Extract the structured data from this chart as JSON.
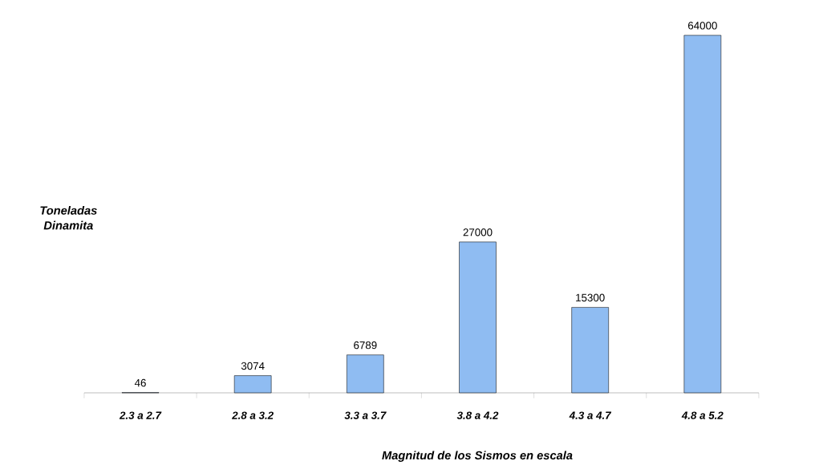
{
  "chart_data": {
    "type": "bar",
    "xlabel": "Magnitud de los Sismos en escala",
    "ylabel": "Toneladas Dinamita",
    "categories": [
      "2.3 a 2.7",
      "2.8 a 3.2",
      "3.3 a 3.7",
      "3.8 a 4.2",
      "4.3 a 4.7",
      "4.8 a 5.2"
    ],
    "values": [
      46,
      3074,
      6789,
      27000,
      15300,
      64000
    ],
    "color": "#8fbcf2",
    "data_labels": true
  }
}
